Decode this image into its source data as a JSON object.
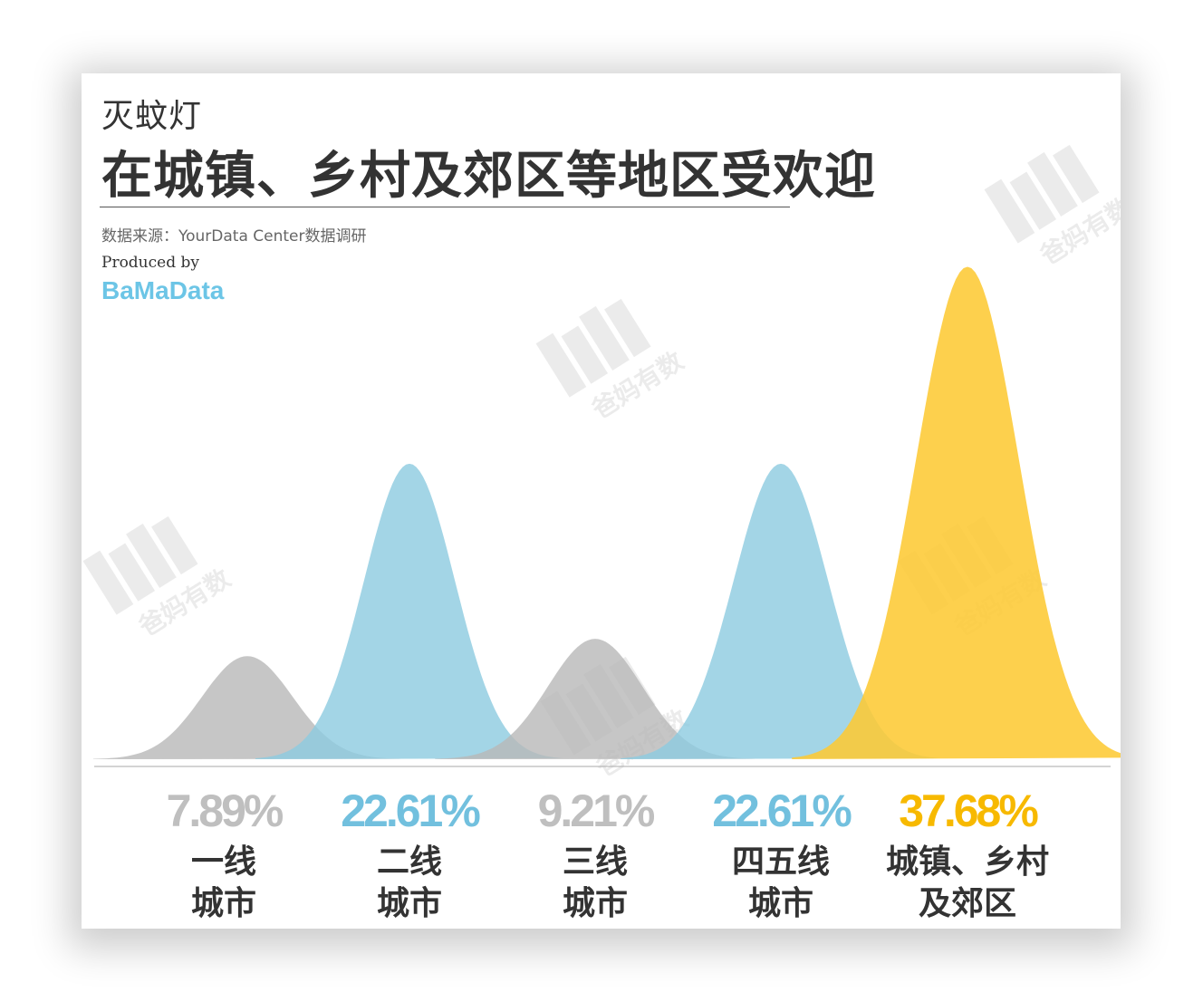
{
  "header": {
    "subtitle": "灭蚊灯",
    "title": "在城镇、乡村及郊区等地区受欢迎",
    "source": "数据来源：YourData Center数据调研",
    "produced_by": "Produced by",
    "brand": "BaMaData"
  },
  "watermark": {
    "text": "爸妈有数"
  },
  "colors": {
    "gray": "#b8b8b8",
    "blue": "#8ccbe0",
    "yellow": "#fdc934",
    "gray_text": "#bfbfbf",
    "blue_text": "#72c0de",
    "yellow_text": "#f7b900"
  },
  "chart_data": {
    "type": "area",
    "title": "在城镇、乡村及郊区等地区受欢迎",
    "subtitle": "灭蚊灯",
    "ylim": [
      0,
      40
    ],
    "grid": false,
    "legend": "none",
    "categories": [
      {
        "line1": "一线",
        "line2": "城市",
        "value": 7.89,
        "label": "7.89%",
        "color": "gray"
      },
      {
        "line1": "二线",
        "line2": "城市",
        "value": 22.61,
        "label": "22.61%",
        "color": "blue"
      },
      {
        "line1": "三线",
        "line2": "城市",
        "value": 9.21,
        "label": "9.21%",
        "color": "gray"
      },
      {
        "line1": "四五线",
        "line2": "城市",
        "value": 22.61,
        "label": "22.61%",
        "color": "blue"
      },
      {
        "line1": "城镇、乡村",
        "line2": "及郊区",
        "value": 37.68,
        "label": "37.68%",
        "color": "yellow"
      }
    ]
  }
}
